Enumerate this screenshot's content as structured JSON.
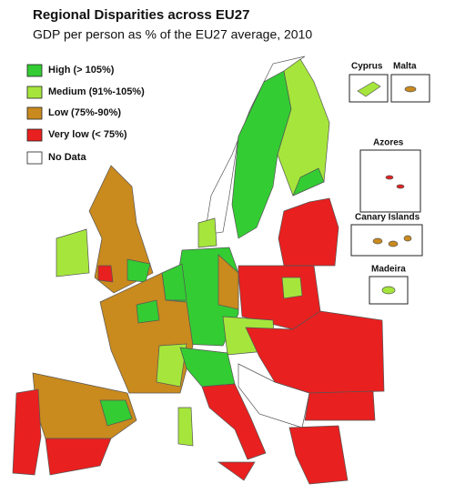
{
  "header": {
    "title": "Regional Disparities across EU27",
    "subtitle": "GDP per person as % of the EU27 average, 2010"
  },
  "legend": {
    "items": [
      {
        "label": "High (> 105%)",
        "color": "#33cc33"
      },
      {
        "label": "Medium (91%-105%)",
        "color": "#a6e63c"
      },
      {
        "label": "Low (75%-90%)",
        "color": "#c98a1e"
      },
      {
        "label": "Very low (< 75%)",
        "color": "#e8201f"
      },
      {
        "label": "No Data",
        "color": "#ffffff"
      }
    ]
  },
  "insets": [
    "Cyprus",
    "Malta",
    "Azores",
    "Canary Islands",
    "Madeira"
  ]
}
